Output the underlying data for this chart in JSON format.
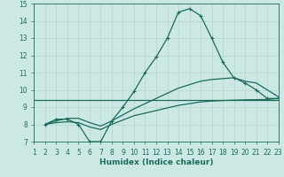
{
  "title": "",
  "xlabel": "Humidex (Indice chaleur)",
  "ylabel": "",
  "xlim": [
    1,
    23
  ],
  "ylim": [
    7,
    15
  ],
  "xticks": [
    1,
    2,
    3,
    4,
    5,
    6,
    7,
    8,
    9,
    10,
    11,
    12,
    13,
    14,
    15,
    16,
    17,
    18,
    19,
    20,
    21,
    22,
    23
  ],
  "yticks": [
    7,
    8,
    9,
    10,
    11,
    12,
    13,
    14,
    15
  ],
  "bg_color": "#cce8e4",
  "line_color": "#1a6b5a",
  "grid_color": "#b8d8d4",
  "line1_x": [
    2,
    3,
    4,
    5,
    6,
    7,
    8,
    9,
    10,
    11,
    12,
    13,
    14,
    15,
    16,
    17,
    18,
    19,
    20,
    21,
    22,
    23
  ],
  "line1_y": [
    8.0,
    8.3,
    8.3,
    8.0,
    7.0,
    7.0,
    8.2,
    9.0,
    9.9,
    11.0,
    11.9,
    13.0,
    14.5,
    14.7,
    14.3,
    13.0,
    11.6,
    10.7,
    10.4,
    10.0,
    9.5,
    9.5
  ],
  "line2_x": [
    1,
    2,
    3,
    4,
    5,
    6,
    7,
    8,
    9,
    10,
    11,
    12,
    13,
    14,
    15,
    16,
    17,
    18,
    19,
    20,
    21,
    22,
    23
  ],
  "line2_y": [
    9.4,
    9.4,
    9.4,
    9.4,
    9.4,
    9.4,
    9.4,
    9.4,
    9.4,
    9.4,
    9.4,
    9.4,
    9.4,
    9.4,
    9.4,
    9.4,
    9.4,
    9.4,
    9.4,
    9.4,
    9.4,
    9.4,
    9.4
  ],
  "line3_x": [
    2,
    3,
    4,
    5,
    6,
    7,
    8,
    9,
    10,
    11,
    12,
    13,
    14,
    15,
    16,
    17,
    18,
    19,
    20,
    21,
    22,
    23
  ],
  "line3_y": [
    8.0,
    8.1,
    8.15,
    8.1,
    7.85,
    7.7,
    8.0,
    8.25,
    8.5,
    8.65,
    8.8,
    8.95,
    9.1,
    9.2,
    9.3,
    9.35,
    9.38,
    9.4,
    9.42,
    9.43,
    9.44,
    9.5
  ],
  "line4_x": [
    2,
    3,
    4,
    5,
    6,
    7,
    8,
    9,
    10,
    11,
    12,
    13,
    14,
    15,
    16,
    17,
    18,
    19,
    20,
    21,
    22,
    23
  ],
  "line4_y": [
    8.0,
    8.2,
    8.35,
    8.35,
    8.1,
    7.9,
    8.2,
    8.55,
    8.9,
    9.2,
    9.5,
    9.8,
    10.1,
    10.3,
    10.5,
    10.6,
    10.65,
    10.7,
    10.5,
    10.4,
    10.0,
    9.6
  ]
}
